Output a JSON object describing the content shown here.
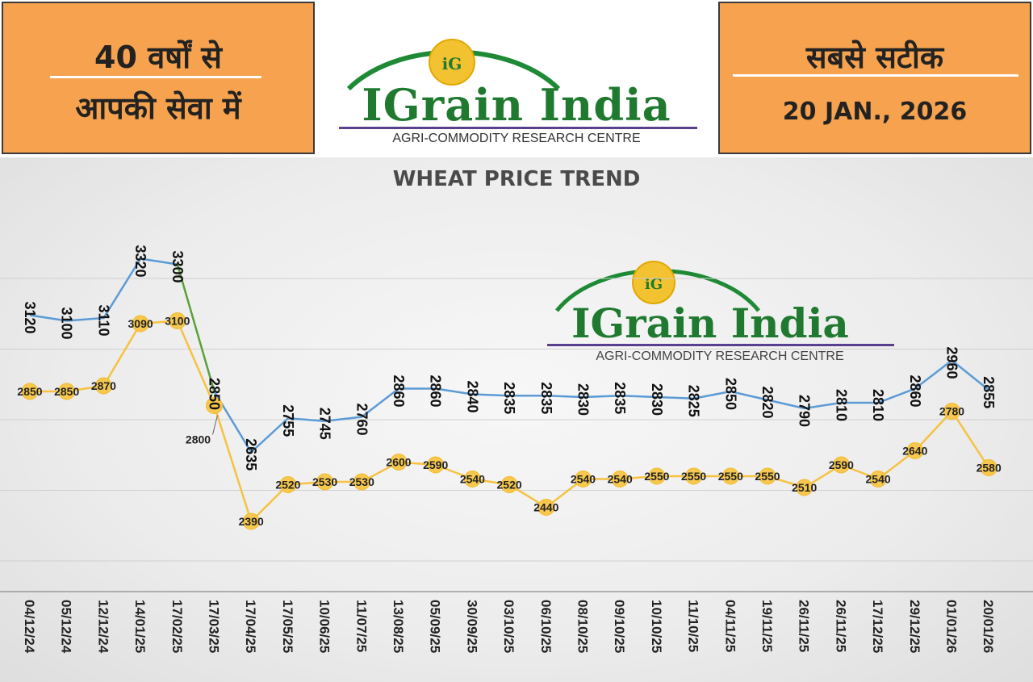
{
  "header": {
    "left_line1": "40 वर्षों से",
    "left_line2": "आपकी सेवा में",
    "right_line1": "सबसे सटीक",
    "right_line2": "20 JAN., 2026",
    "panel_color": "#f6a24e"
  },
  "logo": {
    "brand": "IGrain India",
    "subtitle": "AGRI-COMMODITY RESEARCH CENTRE",
    "badge": "iG",
    "brand_color": "#1f7a30"
  },
  "chart_data": {
    "type": "line",
    "title": "WHEAT PRICE TREND",
    "xlabel": "",
    "ylabel": "",
    "grid": true,
    "legend": "none",
    "ylim": [
      2150,
      3350
    ],
    "categories": [
      "04/12/24",
      "05/12/24",
      "12/12/24",
      "14/01/25",
      "17/02/25",
      "17/03/25",
      "17/04/25",
      "17/05/25",
      "10/06/25",
      "11/07/25",
      "13/08/25",
      "05/09/25",
      "30/09/25",
      "03/10/25",
      "06/10/25",
      "08/10/25",
      "09/10/25",
      "10/10/25",
      "11/10/25",
      "04/11/25",
      "19/11/25",
      "26/11/25",
      "26/11/25",
      "17/12/25",
      "29/12/25",
      "01/01/26",
      "20/01/26"
    ],
    "series": [
      {
        "values": [
          3120,
          3100,
          3110,
          3320,
          3300,
          2850,
          2635,
          2755,
          2745,
          2760,
          2860,
          2860,
          2840,
          2835,
          2835,
          2830,
          2835,
          2830,
          2825,
          2850,
          2820,
          2790,
          2810,
          2810,
          2860,
          2960,
          2855
        ],
        "color": "#5b9bd5"
      },
      {
        "values": [
          2850,
          2850,
          2870,
          3090,
          3100,
          2800,
          2390,
          2520,
          2530,
          2530,
          2600,
          2590,
          2540,
          2520,
          2440,
          2540,
          2540,
          2550,
          2550,
          2550,
          2550,
          2510,
          2590,
          2540,
          2640,
          2780,
          2580
        ],
        "color": "#f5c242"
      }
    ]
  }
}
